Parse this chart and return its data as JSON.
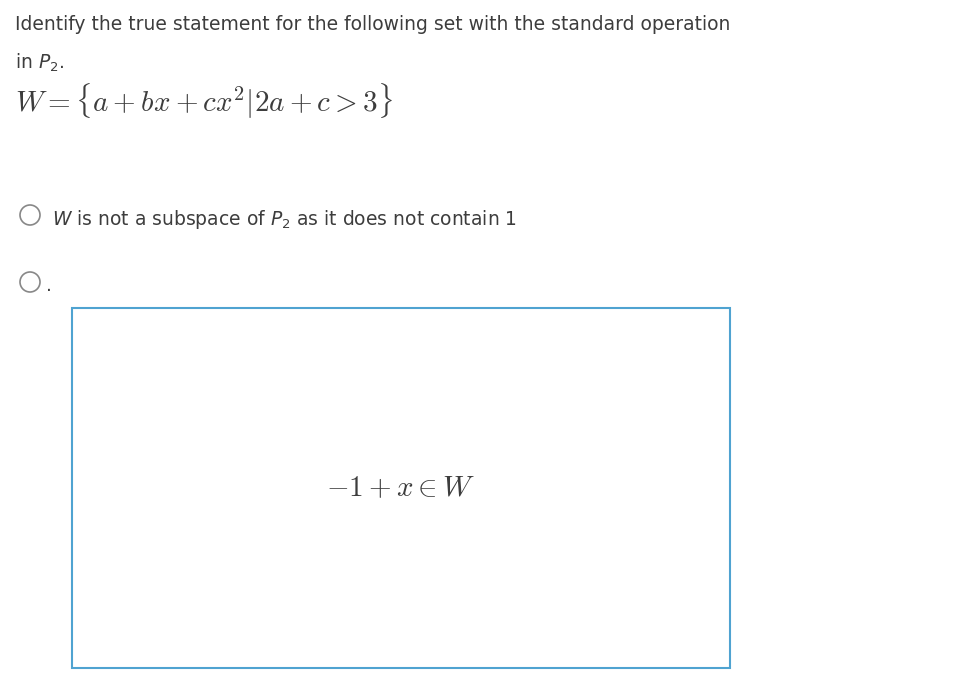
{
  "background_color": "#ffffff",
  "title_line1": "Identify the true statement for the following set with the standard operation",
  "title_line2": "in $P_2$.",
  "set_formula": "$W=\\{a+bx+cx^2|2a+c>3\\}$",
  "option1_circle_text": "$W$ is not a subspace of $P_2$ as it does not contain 1",
  "option2_formula": "$-1+x\\in W$",
  "text_color": "#3d3d3d",
  "box_border_color": "#4fa3d1",
  "circle_color": "#888888",
  "title_fontsize": 13.5,
  "set_fontsize": 21,
  "option1_fontsize": 13.5,
  "option2_fontsize": 21,
  "fig_width": 9.65,
  "fig_height": 6.75,
  "dpi": 100
}
